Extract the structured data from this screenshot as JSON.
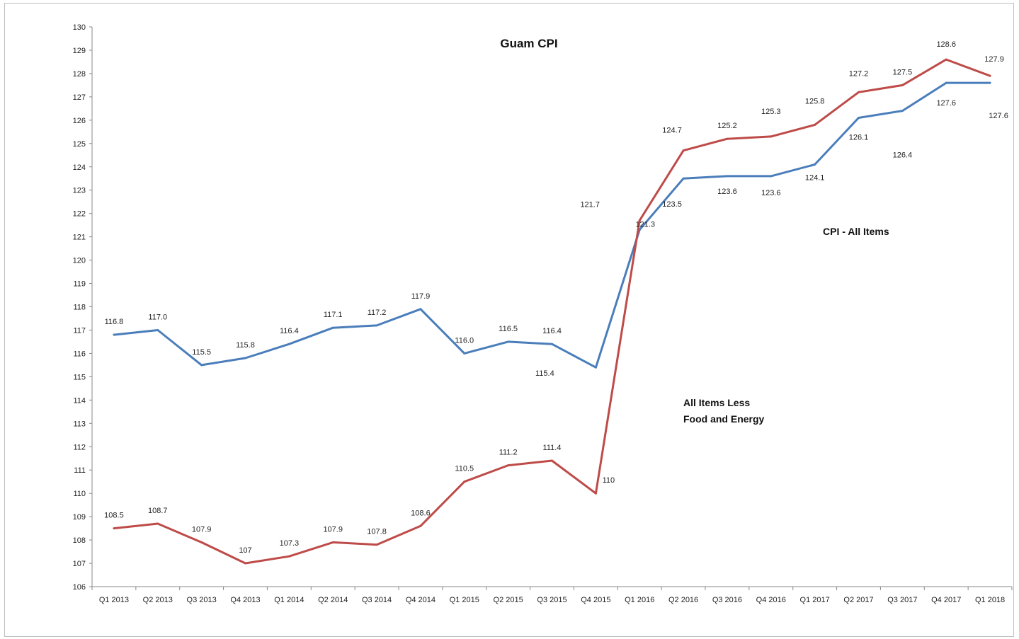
{
  "chart_data": {
    "type": "line",
    "title": "Guam CPI",
    "xlabel": "",
    "ylabel": "",
    "ylim": [
      106,
      130
    ],
    "yticks": [
      106,
      107,
      108,
      109,
      110,
      111,
      112,
      113,
      114,
      115,
      116,
      117,
      118,
      119,
      120,
      121,
      122,
      123,
      124,
      125,
      126,
      127,
      128,
      129,
      130
    ],
    "grid": false,
    "categories": [
      "Q1 2013",
      "Q2 2013",
      "Q3 2013",
      "Q4 2013",
      "Q1 2014",
      "Q2 2014",
      "Q3 2014",
      "Q4 2014",
      "Q1 2015",
      "Q2 2015",
      "Q3 2015",
      "Q4 2015",
      "Q1 2016",
      "Q2 2016",
      "Q3 2016",
      "Q4 2016",
      "Q1 2017",
      "Q2 2017",
      "Q3 2017",
      "Q4 2017",
      "Q1 2018"
    ],
    "series": [
      {
        "name": "CPI - All Items",
        "color": "#4a7ebb",
        "values": [
          116.8,
          117.0,
          115.5,
          115.8,
          116.4,
          117.1,
          117.2,
          117.9,
          116.0,
          116.5,
          116.4,
          115.4,
          121.3,
          123.5,
          123.6,
          123.6,
          124.1,
          126.1,
          126.4,
          127.6,
          127.6
        ],
        "labels": [
          "116.8",
          "117.0",
          "115.5",
          "115.8",
          "116.4",
          "117.1",
          "117.2",
          "117.9",
          "116.0",
          "116.5",
          "116.4",
          "115.4",
          "121.3",
          "123.5",
          "123.6",
          "123.6",
          "124.1",
          "126.1",
          "126.4",
          "127.6",
          "127.6"
        ]
      },
      {
        "name": "All Items Less Food and Energy",
        "color": "#be4b48",
        "values": [
          108.5,
          108.7,
          107.9,
          107.0,
          107.3,
          107.9,
          107.8,
          108.6,
          110.5,
          111.2,
          111.4,
          110.0,
          121.7,
          124.7,
          125.2,
          125.3,
          125.8,
          127.2,
          127.5,
          128.6,
          127.9
        ],
        "labels": [
          "108.5",
          "108.7",
          "107.9",
          "107",
          "107.3",
          "107.9",
          "107.8",
          "108.6",
          "110.5",
          "111.2",
          "111.4",
          "110",
          "121.7",
          "124.7",
          "125.2",
          "125.3",
          "125.8",
          "127.2",
          "127.5",
          "128.6",
          "127.9"
        ]
      }
    ],
    "annotations": [
      {
        "text": "CPI - All Items"
      },
      {
        "text": "All Items Less"
      },
      {
        "text": "Food and Energy"
      }
    ]
  }
}
